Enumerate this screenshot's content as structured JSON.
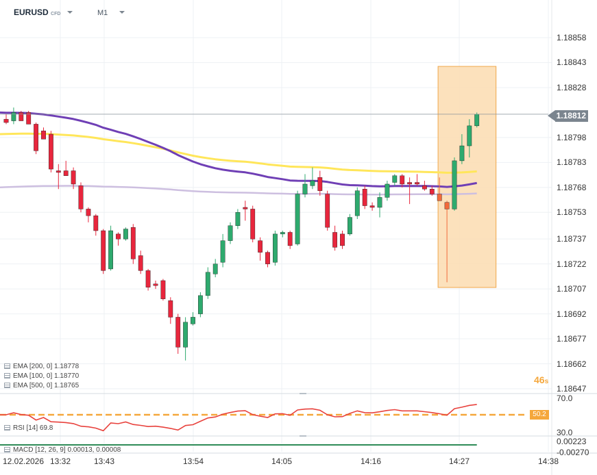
{
  "header": {
    "symbol": "EURUSD",
    "instrument_type": "CFD",
    "timeframe": "M1"
  },
  "price_axis": {
    "labels": [
      "1.18858",
      "1.18843",
      "1.18828",
      "1.18812",
      "1.18798",
      "1.18783",
      "1.18768",
      "1.18753",
      "1.18737",
      "1.18722",
      "1.18707",
      "1.18692",
      "1.18677",
      "1.18662",
      "1.18647"
    ],
    "current_price": "1.18812"
  },
  "time_axis": {
    "labels": [
      "12.02.2026",
      "13:32",
      "13:43",
      "13:54",
      "14:05",
      "14:16",
      "14:27",
      "14:38"
    ]
  },
  "countdown": {
    "value": "46",
    "unit": "s"
  },
  "indicators": {
    "ema_legend": [
      {
        "text": "EMA [200, 0] 1.18778",
        "color": "#ffe65a"
      },
      {
        "text": "EMA [100, 0] 1.18770",
        "color": "#6f3fb5"
      },
      {
        "text": "EMA [500, 0] 1.18765",
        "color": "#cdbfe0"
      }
    ],
    "rsi": {
      "legend": "RSI [14] 69.8",
      "levels": [
        "70.0",
        "30.0"
      ],
      "midline_value": "50.2"
    },
    "macd": {
      "legend": "MACD [12, 26, 9] 0.00013, 0.00008",
      "levels": [
        "0.00223",
        "-0.00270"
      ]
    }
  },
  "colors": {
    "bull": "#2eaa6e",
    "bear": "#e8263d",
    "ema200": "#ffe65a",
    "ema100": "#6f3fb5",
    "ema500": "#cdbfe0",
    "highlight": "#fbdcb0",
    "highlight_border": "#f0a64a",
    "rsi_line": "#e8413c",
    "rsi_mid": "#f5a73b",
    "macd": "#2e8b57"
  },
  "chart_data": {
    "type": "candlestick",
    "title": "EURUSD M1",
    "y_ticks": [
      1.18858,
      1.18843,
      1.18828,
      1.18812,
      1.18798,
      1.18783,
      1.18768,
      1.18753,
      1.18737,
      1.18722,
      1.18707,
      1.18692,
      1.18677,
      1.18662,
      1.18647
    ],
    "x_ticks": [
      "13:32",
      "13:43",
      "13:54",
      "14:05",
      "14:16",
      "14:27",
      "14:38"
    ],
    "current_price": 1.18812,
    "candles": [
      {
        "o": 1.18809,
        "h": 1.18812,
        "l": 1.18806,
        "c": 1.18807
      },
      {
        "o": 1.18808,
        "h": 1.18816,
        "l": 1.18806,
        "c": 1.18813
      },
      {
        "o": 1.18813,
        "h": 1.18814,
        "l": 1.18808,
        "c": 1.18808
      },
      {
        "o": 1.18813,
        "h": 1.18814,
        "l": 1.18806,
        "c": 1.18806
      },
      {
        "o": 1.18806,
        "h": 1.18807,
        "l": 1.18788,
        "c": 1.1879
      },
      {
        "o": 1.18802,
        "h": 1.18804,
        "l": 1.18797,
        "c": 1.18797
      },
      {
        "o": 1.188,
        "h": 1.18802,
        "l": 1.18777,
        "c": 1.18779
      },
      {
        "o": 1.18778,
        "h": 1.18782,
        "l": 1.18767,
        "c": 1.18777
      },
      {
        "o": 1.18778,
        "h": 1.18784,
        "l": 1.18775,
        "c": 1.18775
      },
      {
        "o": 1.18778,
        "h": 1.1878,
        "l": 1.18767,
        "c": 1.1877
      },
      {
        "o": 1.18769,
        "h": 1.18771,
        "l": 1.18753,
        "c": 1.18755
      },
      {
        "o": 1.18755,
        "h": 1.18756,
        "l": 1.18747,
        "c": 1.18751
      },
      {
        "o": 1.18751,
        "h": 1.18752,
        "l": 1.18739,
        "c": 1.18742
      },
      {
        "o": 1.18742,
        "h": 1.18743,
        "l": 1.18716,
        "c": 1.18718
      },
      {
        "o": 1.18719,
        "h": 1.18745,
        "l": 1.18718,
        "c": 1.18742
      },
      {
        "o": 1.1874,
        "h": 1.18741,
        "l": 1.18733,
        "c": 1.18737
      },
      {
        "o": 1.18737,
        "h": 1.18744,
        "l": 1.18736,
        "c": 1.18743
      },
      {
        "o": 1.18744,
        "h": 1.18746,
        "l": 1.18722,
        "c": 1.18725
      },
      {
        "o": 1.18727,
        "h": 1.1873,
        "l": 1.18716,
        "c": 1.18718
      },
      {
        "o": 1.18718,
        "h": 1.18719,
        "l": 1.18706,
        "c": 1.18708
      },
      {
        "o": 1.1871,
        "h": 1.18712,
        "l": 1.18707,
        "c": 1.18709
      },
      {
        "o": 1.18712,
        "h": 1.18713,
        "l": 1.187,
        "c": 1.18701
      },
      {
        "o": 1.187,
        "h": 1.18702,
        "l": 1.18686,
        "c": 1.1869
      },
      {
        "o": 1.1869,
        "h": 1.18692,
        "l": 1.18668,
        "c": 1.18672
      },
      {
        "o": 1.18672,
        "h": 1.1869,
        "l": 1.18664,
        "c": 1.18687
      },
      {
        "o": 1.18686,
        "h": 1.18693,
        "l": 1.18685,
        "c": 1.1869
      },
      {
        "o": 1.18692,
        "h": 1.18705,
        "l": 1.1869,
        "c": 1.18703
      },
      {
        "o": 1.18703,
        "h": 1.1872,
        "l": 1.18701,
        "c": 1.18717
      },
      {
        "o": 1.18716,
        "h": 1.18725,
        "l": 1.18714,
        "c": 1.18722
      },
      {
        "o": 1.18723,
        "h": 1.1874,
        "l": 1.1872,
        "c": 1.18736
      },
      {
        "o": 1.18736,
        "h": 1.18747,
        "l": 1.18734,
        "c": 1.18745
      },
      {
        "o": 1.18745,
        "h": 1.18755,
        "l": 1.18743,
        "c": 1.18753
      },
      {
        "o": 1.18756,
        "h": 1.1876,
        "l": 1.18748,
        "c": 1.18755
      },
      {
        "o": 1.18755,
        "h": 1.18757,
        "l": 1.18735,
        "c": 1.18737
      },
      {
        "o": 1.18736,
        "h": 1.18738,
        "l": 1.18724,
        "c": 1.18729
      },
      {
        "o": 1.18729,
        "h": 1.1873,
        "l": 1.1872,
        "c": 1.18722
      },
      {
        "o": 1.18723,
        "h": 1.18742,
        "l": 1.18721,
        "c": 1.1874
      },
      {
        "o": 1.1874,
        "h": 1.18742,
        "l": 1.18738,
        "c": 1.18741
      },
      {
        "o": 1.18741,
        "h": 1.18742,
        "l": 1.18731,
        "c": 1.18733
      },
      {
        "o": 1.18734,
        "h": 1.18766,
        "l": 1.18733,
        "c": 1.18764
      },
      {
        "o": 1.18764,
        "h": 1.18776,
        "l": 1.18762,
        "c": 1.1877
      },
      {
        "o": 1.18769,
        "h": 1.1878,
        "l": 1.18767,
        "c": 1.18772
      },
      {
        "o": 1.18774,
        "h": 1.18778,
        "l": 1.18763,
        "c": 1.18766
      },
      {
        "o": 1.18764,
        "h": 1.18766,
        "l": 1.18742,
        "c": 1.18744
      },
      {
        "o": 1.18741,
        "h": 1.18745,
        "l": 1.1873,
        "c": 1.18732
      },
      {
        "o": 1.1874,
        "h": 1.18742,
        "l": 1.18731,
        "c": 1.18733
      },
      {
        "o": 1.1874,
        "h": 1.18752,
        "l": 1.18739,
        "c": 1.1875
      },
      {
        "o": 1.18751,
        "h": 1.18768,
        "l": 1.18749,
        "c": 1.18766
      },
      {
        "o": 1.18767,
        "h": 1.18769,
        "l": 1.18755,
        "c": 1.18757
      },
      {
        "o": 1.18757,
        "h": 1.18759,
        "l": 1.18754,
        "c": 1.18756
      },
      {
        "o": 1.18756,
        "h": 1.18765,
        "l": 1.1875,
        "c": 1.18762
      },
      {
        "o": 1.18762,
        "h": 1.18772,
        "l": 1.1876,
        "c": 1.1877
      },
      {
        "o": 1.18771,
        "h": 1.18776,
        "l": 1.18769,
        "c": 1.18775
      },
      {
        "o": 1.18775,
        "h": 1.18776,
        "l": 1.18768,
        "c": 1.1877
      },
      {
        "o": 1.18771,
        "h": 1.18774,
        "l": 1.18758,
        "c": 1.1877
      },
      {
        "o": 1.18771,
        "h": 1.18776,
        "l": 1.18769,
        "c": 1.1877
      },
      {
        "o": 1.18769,
        "h": 1.18772,
        "l": 1.18766,
        "c": 1.18767
      },
      {
        "o": 1.18767,
        "h": 1.18769,
        "l": 1.18763,
        "c": 1.18764
      },
      {
        "o": 1.18764,
        "h": 1.18774,
        "l": 1.1876,
        "c": 1.1876
      },
      {
        "o": 1.18759,
        "h": 1.1876,
        "l": 1.18711,
        "c": 1.18755
      },
      {
        "o": 1.18755,
        "h": 1.18786,
        "l": 1.18754,
        "c": 1.18784
      },
      {
        "o": 1.18784,
        "h": 1.188,
        "l": 1.18782,
        "c": 1.18793
      },
      {
        "o": 1.18793,
        "h": 1.18809,
        "l": 1.18786,
        "c": 1.18805
      },
      {
        "o": 1.18805,
        "h": 1.18813,
        "l": 1.18804,
        "c": 1.18812
      }
    ]
  }
}
